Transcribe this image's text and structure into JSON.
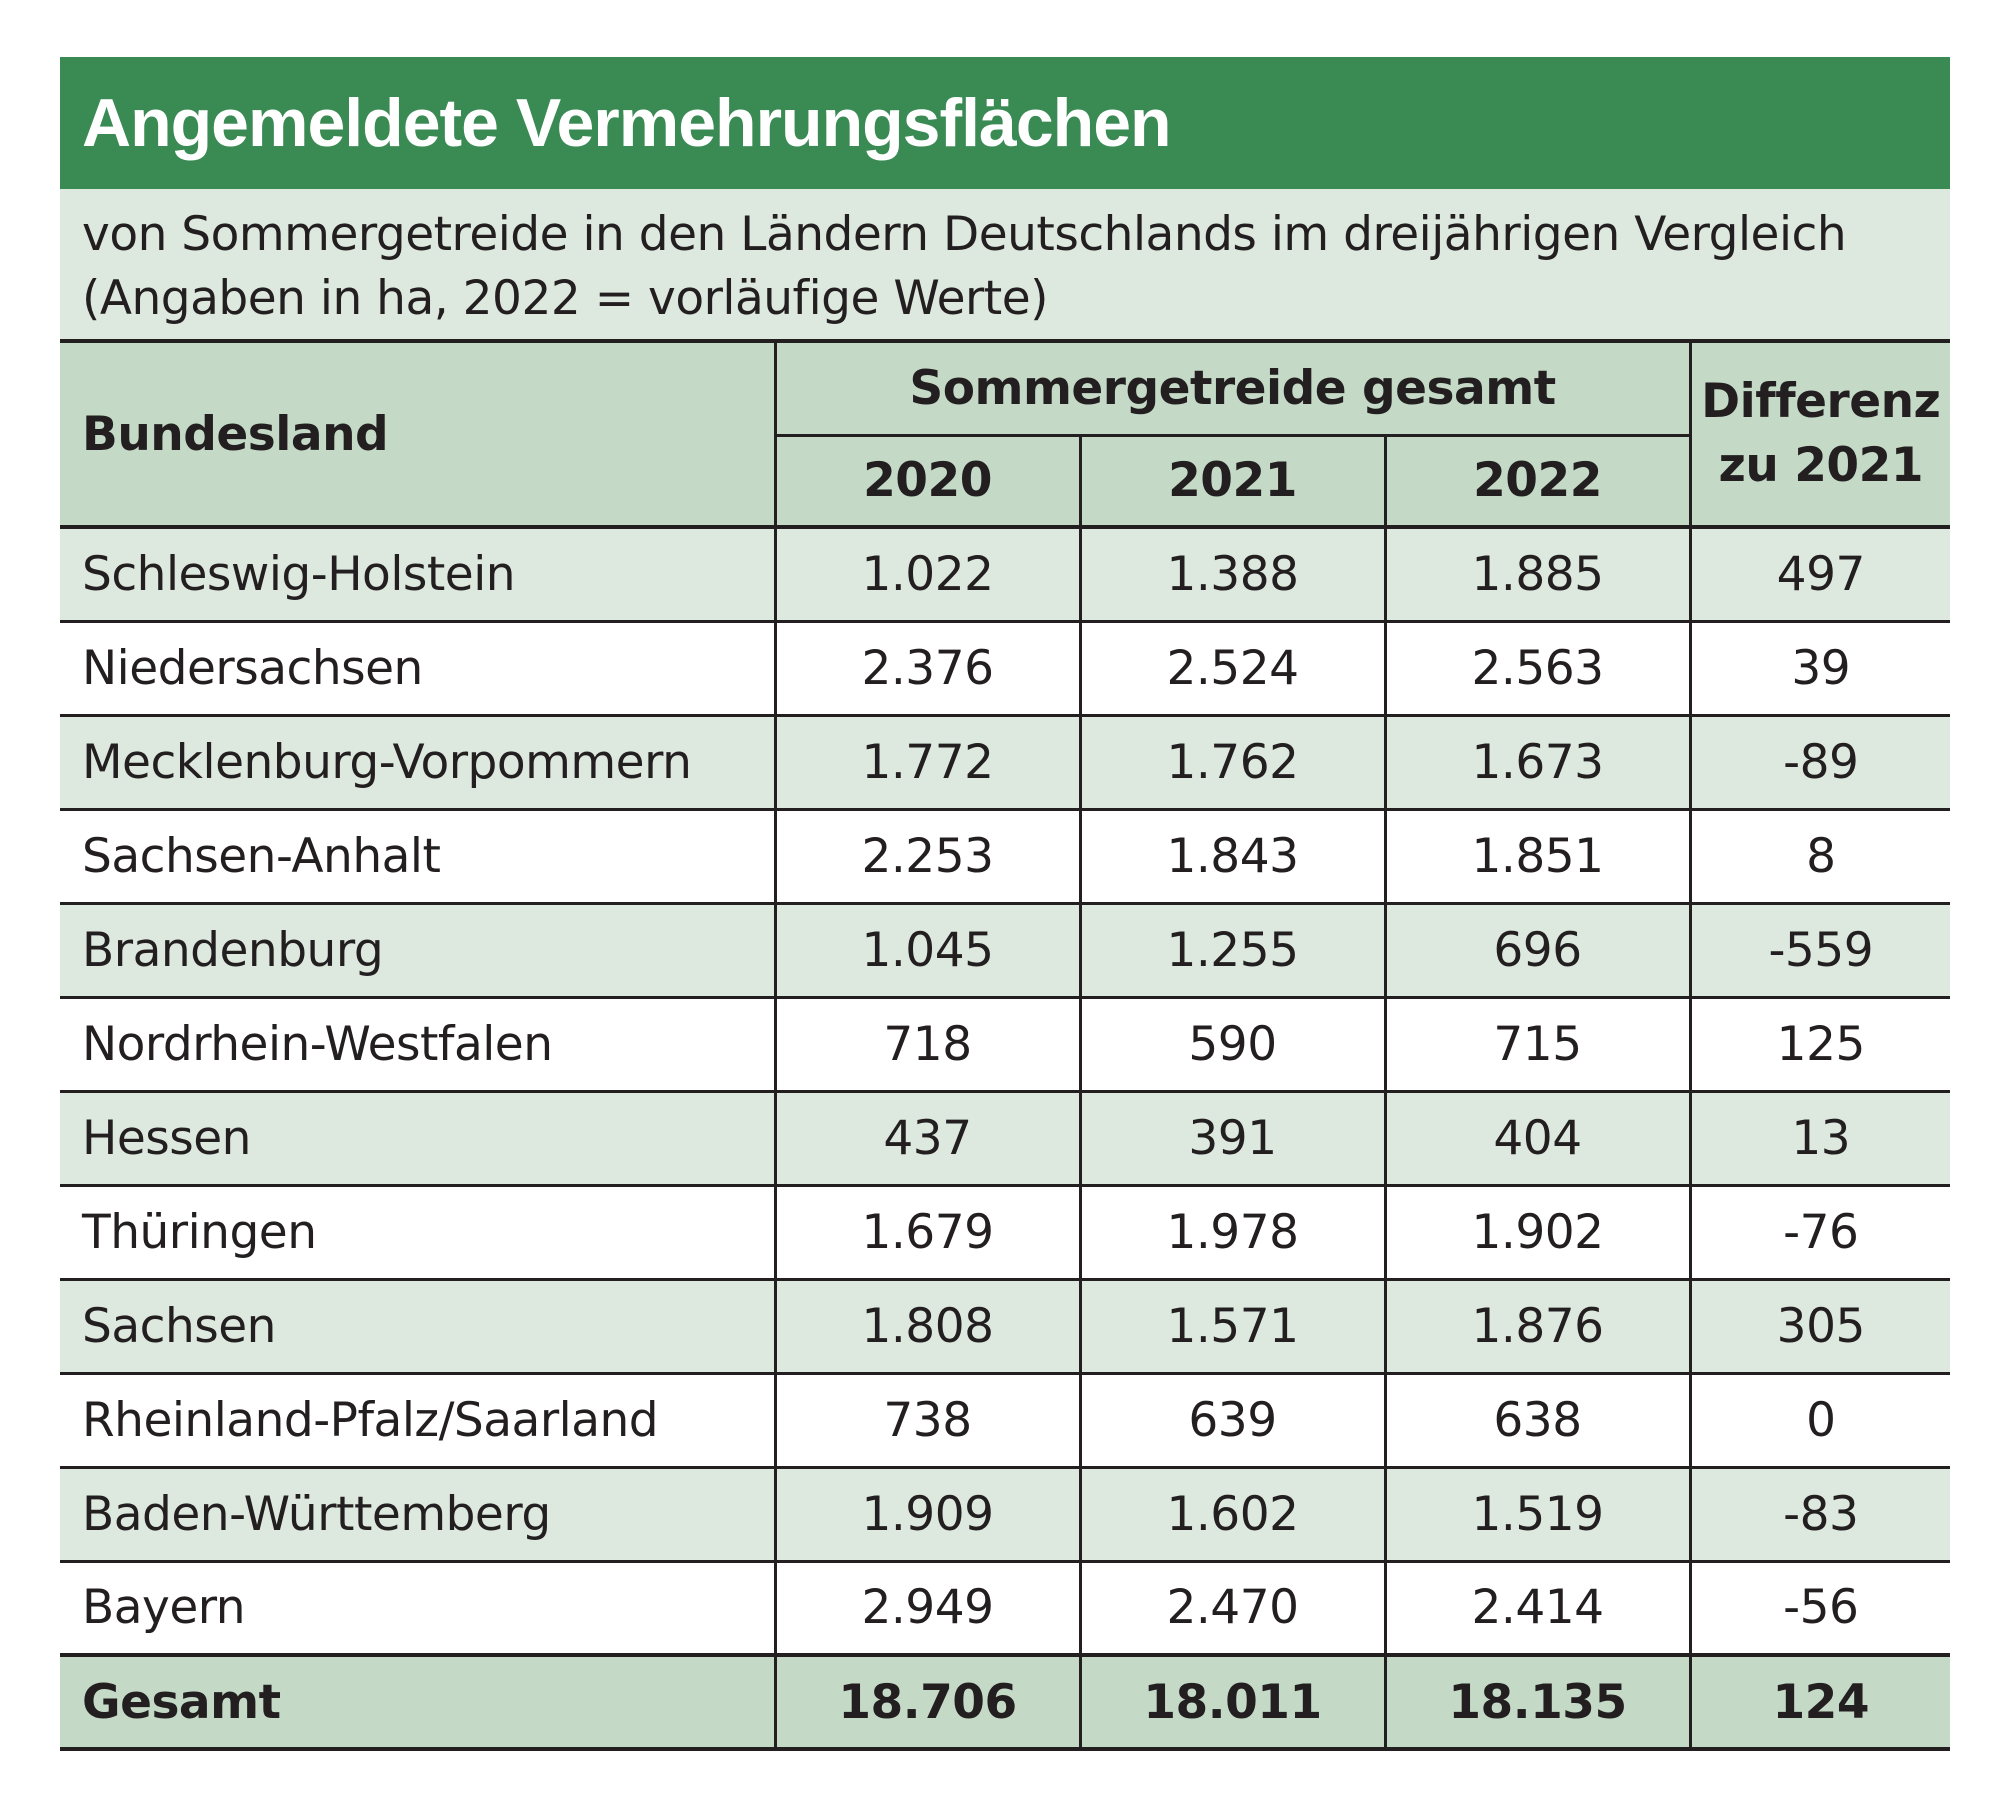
{
  "title": "Angemeldete Vermehrungsflächen",
  "subtitle_lines": [
    "von Sommergetreide in den Ländern Deutschlands im dreijährigen Vergleich",
    "(Angaben in ha, 2022 = vorläufige Werte)"
  ],
  "header": {
    "land": "Bundesland",
    "group": "Sommergetreide gesamt",
    "years": [
      "2020",
      "2021",
      "2022"
    ],
    "diff_line1": "Differenz",
    "diff_line2": "zu 2021"
  },
  "rows": [
    {
      "land": "Schleswig-Holstein",
      "y2020": "1.022",
      "y2021": "1.388",
      "y2022": "1.885",
      "diff": "497"
    },
    {
      "land": "Niedersachsen",
      "y2020": "2.376",
      "y2021": "2.524",
      "y2022": "2.563",
      "diff": "39"
    },
    {
      "land": "Mecklenburg-Vorpommern",
      "y2020": "1.772",
      "y2021": "1.762",
      "y2022": "1.673",
      "diff": "-89"
    },
    {
      "land": "Sachsen-Anhalt",
      "y2020": "2.253",
      "y2021": "1.843",
      "y2022": "1.851",
      "diff": "8"
    },
    {
      "land": "Brandenburg",
      "y2020": "1.045",
      "y2021": "1.255",
      "y2022": "696",
      "diff": "-559"
    },
    {
      "land": "Nordrhein-Westfalen",
      "y2020": "718",
      "y2021": "590",
      "y2022": "715",
      "diff": "125"
    },
    {
      "land": "Hessen",
      "y2020": "437",
      "y2021": "391",
      "y2022": "404",
      "diff": "13"
    },
    {
      "land": "Thüringen",
      "y2020": "1.679",
      "y2021": "1.978",
      "y2022": "1.902",
      "diff": "-76"
    },
    {
      "land": "Sachsen",
      "y2020": "1.808",
      "y2021": "1.571",
      "y2022": "1.876",
      "diff": "305"
    },
    {
      "land": "Rheinland-Pfalz/Saarland",
      "y2020": "738",
      "y2021": "639",
      "y2022": "638",
      "diff": "0"
    },
    {
      "land": "Baden-Württemberg",
      "y2020": "1.909",
      "y2021": "1.602",
      "y2022": "1.519",
      "diff": "-83"
    },
    {
      "land": "Bayern",
      "y2020": "2.949",
      "y2021": "2.470",
      "y2022": "2.414",
      "diff": "-56"
    }
  ],
  "total": {
    "land": "Gesamt",
    "y2020": "18.706",
    "y2021": "18.011",
    "y2022": "18.135",
    "diff": "124"
  },
  "colors": {
    "title_bar": "#3a8a54",
    "header_fill": "#c4dac7",
    "light_fill": "#dde9df"
  }
}
